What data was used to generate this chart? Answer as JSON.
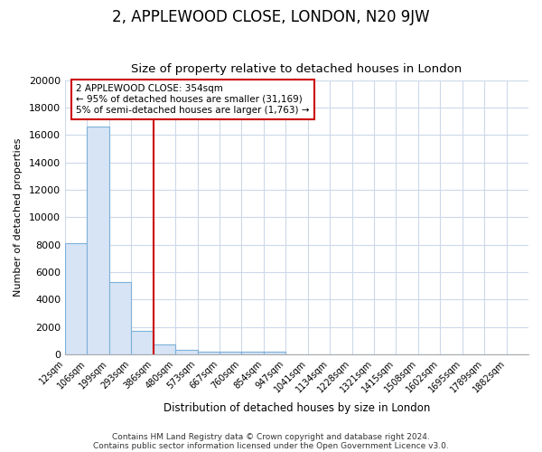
{
  "title": "2, APPLEWOOD CLOSE, LONDON, N20 9JW",
  "subtitle": "Size of property relative to detached houses in London",
  "xlabel": "Distribution of detached houses by size in London",
  "ylabel": "Number of detached properties",
  "bar_labels": [
    "12sqm",
    "106sqm",
    "199sqm",
    "293sqm",
    "386sqm",
    "480sqm",
    "573sqm",
    "667sqm",
    "760sqm",
    "854sqm",
    "947sqm",
    "1041sqm",
    "1134sqm",
    "1228sqm",
    "1321sqm",
    "1415sqm",
    "1508sqm",
    "1602sqm",
    "1695sqm",
    "1789sqm",
    "1882sqm"
  ],
  "bar_heights": [
    8100,
    16600,
    5300,
    1750,
    700,
    330,
    220,
    210,
    190,
    180,
    0,
    0,
    0,
    0,
    0,
    0,
    0,
    0,
    0,
    0,
    0
  ],
  "bar_color": "#d6e4f5",
  "bar_edge_color": "#7eb0d9",
  "vline_x": 4.0,
  "vline_color": "#cc0000",
  "ylim": [
    0,
    20000
  ],
  "yticks": [
    0,
    2000,
    4000,
    6000,
    8000,
    10000,
    12000,
    14000,
    16000,
    18000,
    20000
  ],
  "annotation_title": "2 APPLEWOOD CLOSE: 354sqm",
  "annotation_line1": "← 95% of detached houses are smaller (31,169)",
  "annotation_line2": "5% of semi-detached houses are larger (1,763) →",
  "annotation_box_color": "#ffffff",
  "annotation_box_edge": "#cc0000",
  "footer1": "Contains HM Land Registry data © Crown copyright and database right 2024.",
  "footer2": "Contains public sector information licensed under the Open Government Licence v3.0.",
  "background_color": "#ffffff",
  "grid_color": "#ccd9ea",
  "title_fontsize": 12,
  "subtitle_fontsize": 9.5,
  "ylabel_fontsize": 8,
  "xlabel_fontsize": 8.5,
  "ytick_fontsize": 8,
  "xtick_fontsize": 7
}
